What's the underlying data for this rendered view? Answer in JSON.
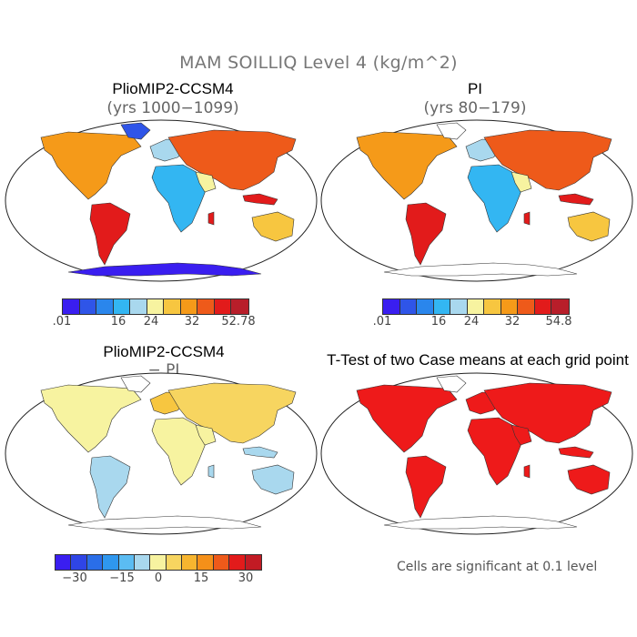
{
  "figure": {
    "title": "MAM SOILLIQ Level 4 (kg/m^2)"
  },
  "panels": [
    {
      "id": "pliomip",
      "title": "PlioMIP2-CCSM4",
      "subtitle": "(yrs 1000−1099)"
    },
    {
      "id": "pi",
      "title": "PI",
      "subtitle": "(yrs 80−179)"
    },
    {
      "id": "difference",
      "title": "PlioMIP2-CCSM4",
      "subtitle": "− PI"
    },
    {
      "id": "ttest",
      "title": "T-Test of two Case means at each grid point",
      "subtitle": ""
    }
  ],
  "colorbars": {
    "pliomip": {
      "colors": [
        "#3a1ef0",
        "#2f55e8",
        "#2a86ec",
        "#33b6f2",
        "#a9d8ee",
        "#f7f3a0",
        "#f7c640",
        "#f59a19",
        "#ee5a1a",
        "#e21b1b",
        "#b81e2a"
      ],
      "labels": [
        ".01",
        "16",
        "24",
        "32",
        "52.78"
      ]
    },
    "pi": {
      "colors": [
        "#3a1ef0",
        "#2f55e8",
        "#2a86ec",
        "#33b6f2",
        "#a9d8ee",
        "#f7f3a0",
        "#f7c640",
        "#f59a19",
        "#ee5a1a",
        "#e21b1b",
        "#b81e2a"
      ],
      "labels": [
        ".01",
        "16",
        "24",
        "32",
        "54.8"
      ]
    },
    "difference": {
      "colors": [
        "#3a1ef0",
        "#2f45e6",
        "#2a6ee8",
        "#2f97ee",
        "#5bbcf2",
        "#a9d8ee",
        "#f7f3a0",
        "#f7d560",
        "#f7b52f",
        "#f59019",
        "#ee5a1a",
        "#e21b1b",
        "#c21b24"
      ],
      "labels": [
        "−30",
        "−15",
        "0",
        "15",
        "30"
      ]
    }
  },
  "footnote": "Cells are significant at 0.1 level"
}
